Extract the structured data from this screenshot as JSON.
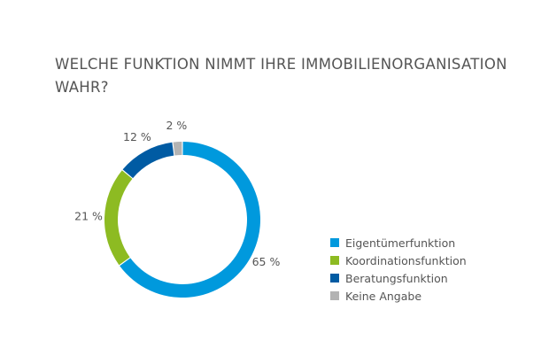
{
  "title": "WELCHE FUNKTION NIMMT IHRE IMMOBILIENORGANISATION WAHR?",
  "chart_data": {
    "type": "pie",
    "donut": true,
    "categories": [
      "Eigentümerfunktion",
      "Koordinationsfunktion",
      "Beratungsfunktion",
      "Keine Angabe"
    ],
    "values": [
      65,
      21,
      12,
      2
    ],
    "labels": [
      "65 %",
      "21 %",
      "12 %",
      "2 %"
    ],
    "colors": [
      "#0099dd",
      "#8dbb22",
      "#005ba3",
      "#b3b3b3"
    ],
    "legend_position": "right",
    "start_angle_deg": 0,
    "direction": "clockwise"
  }
}
